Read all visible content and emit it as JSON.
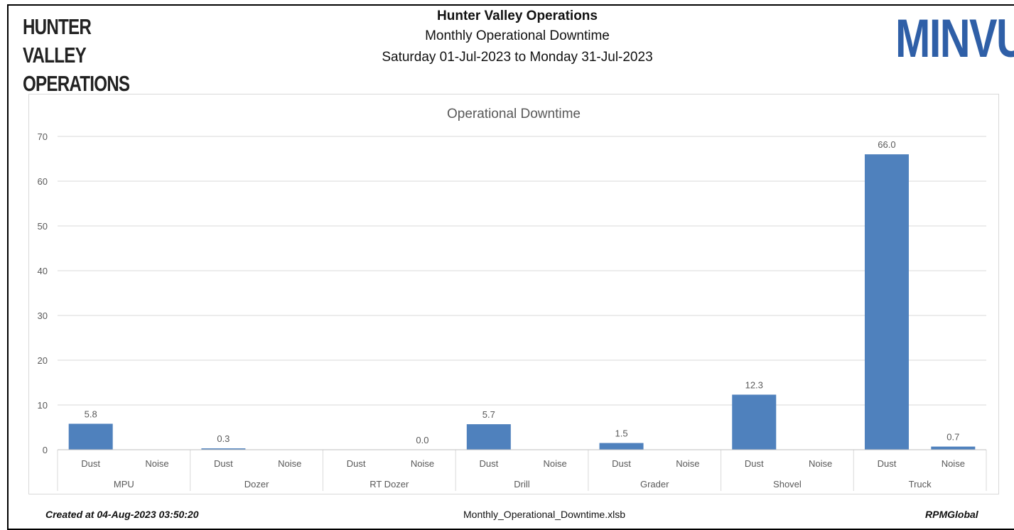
{
  "logo_left": {
    "line1": "HUNTER VALLEY",
    "line2": "OPERATIONS"
  },
  "logo_right": {
    "text": "MINVU"
  },
  "header": {
    "title": "Hunter Valley Operations",
    "subtitle": "Monthly Operational Downtime",
    "date_range": "Saturday 01-Jul-2023 to Monday 31-Jul-2023"
  },
  "footer": {
    "created": "Created at 04-Aug-2023 03:50:20",
    "filename": "Monthly_Operational_Downtime.xlsb",
    "brand": "RPMGlobal"
  },
  "colors": {
    "bar": "#4f81bd",
    "grid": "#d9d9d9",
    "text": "#595959",
    "brand": "#2f5fa7"
  },
  "chart_data": {
    "type": "bar",
    "title": "Operational Downtime",
    "xlabel": "",
    "ylabel": "",
    "ylim": [
      0,
      70
    ],
    "yticks": [
      0,
      10,
      20,
      30,
      40,
      50,
      60,
      70
    ],
    "grid": true,
    "groups": [
      {
        "name": "MPU",
        "bars": [
          {
            "label": "Dust",
            "value": 5.8,
            "value_label": "5.8"
          },
          {
            "label": "Noise",
            "value": null,
            "value_label": ""
          }
        ]
      },
      {
        "name": "Dozer",
        "bars": [
          {
            "label": "Dust",
            "value": 0.3,
            "value_label": "0.3"
          },
          {
            "label": "Noise",
            "value": null,
            "value_label": ""
          }
        ]
      },
      {
        "name": "RT Dozer",
        "bars": [
          {
            "label": "Dust",
            "value": null,
            "value_label": ""
          },
          {
            "label": "Noise",
            "value": 0.0,
            "value_label": "0.0"
          }
        ]
      },
      {
        "name": "Drill",
        "bars": [
          {
            "label": "Dust",
            "value": 5.7,
            "value_label": "5.7"
          },
          {
            "label": "Noise",
            "value": null,
            "value_label": ""
          }
        ]
      },
      {
        "name": "Grader",
        "bars": [
          {
            "label": "Dust",
            "value": 1.5,
            "value_label": "1.5"
          },
          {
            "label": "Noise",
            "value": null,
            "value_label": ""
          }
        ]
      },
      {
        "name": "Shovel",
        "bars": [
          {
            "label": "Dust",
            "value": 12.3,
            "value_label": "12.3"
          },
          {
            "label": "Noise",
            "value": null,
            "value_label": ""
          }
        ]
      },
      {
        "name": "Truck",
        "bars": [
          {
            "label": "Dust",
            "value": 66.0,
            "value_label": "66.0"
          },
          {
            "label": "Noise",
            "value": 0.7,
            "value_label": "0.7"
          }
        ]
      }
    ]
  }
}
